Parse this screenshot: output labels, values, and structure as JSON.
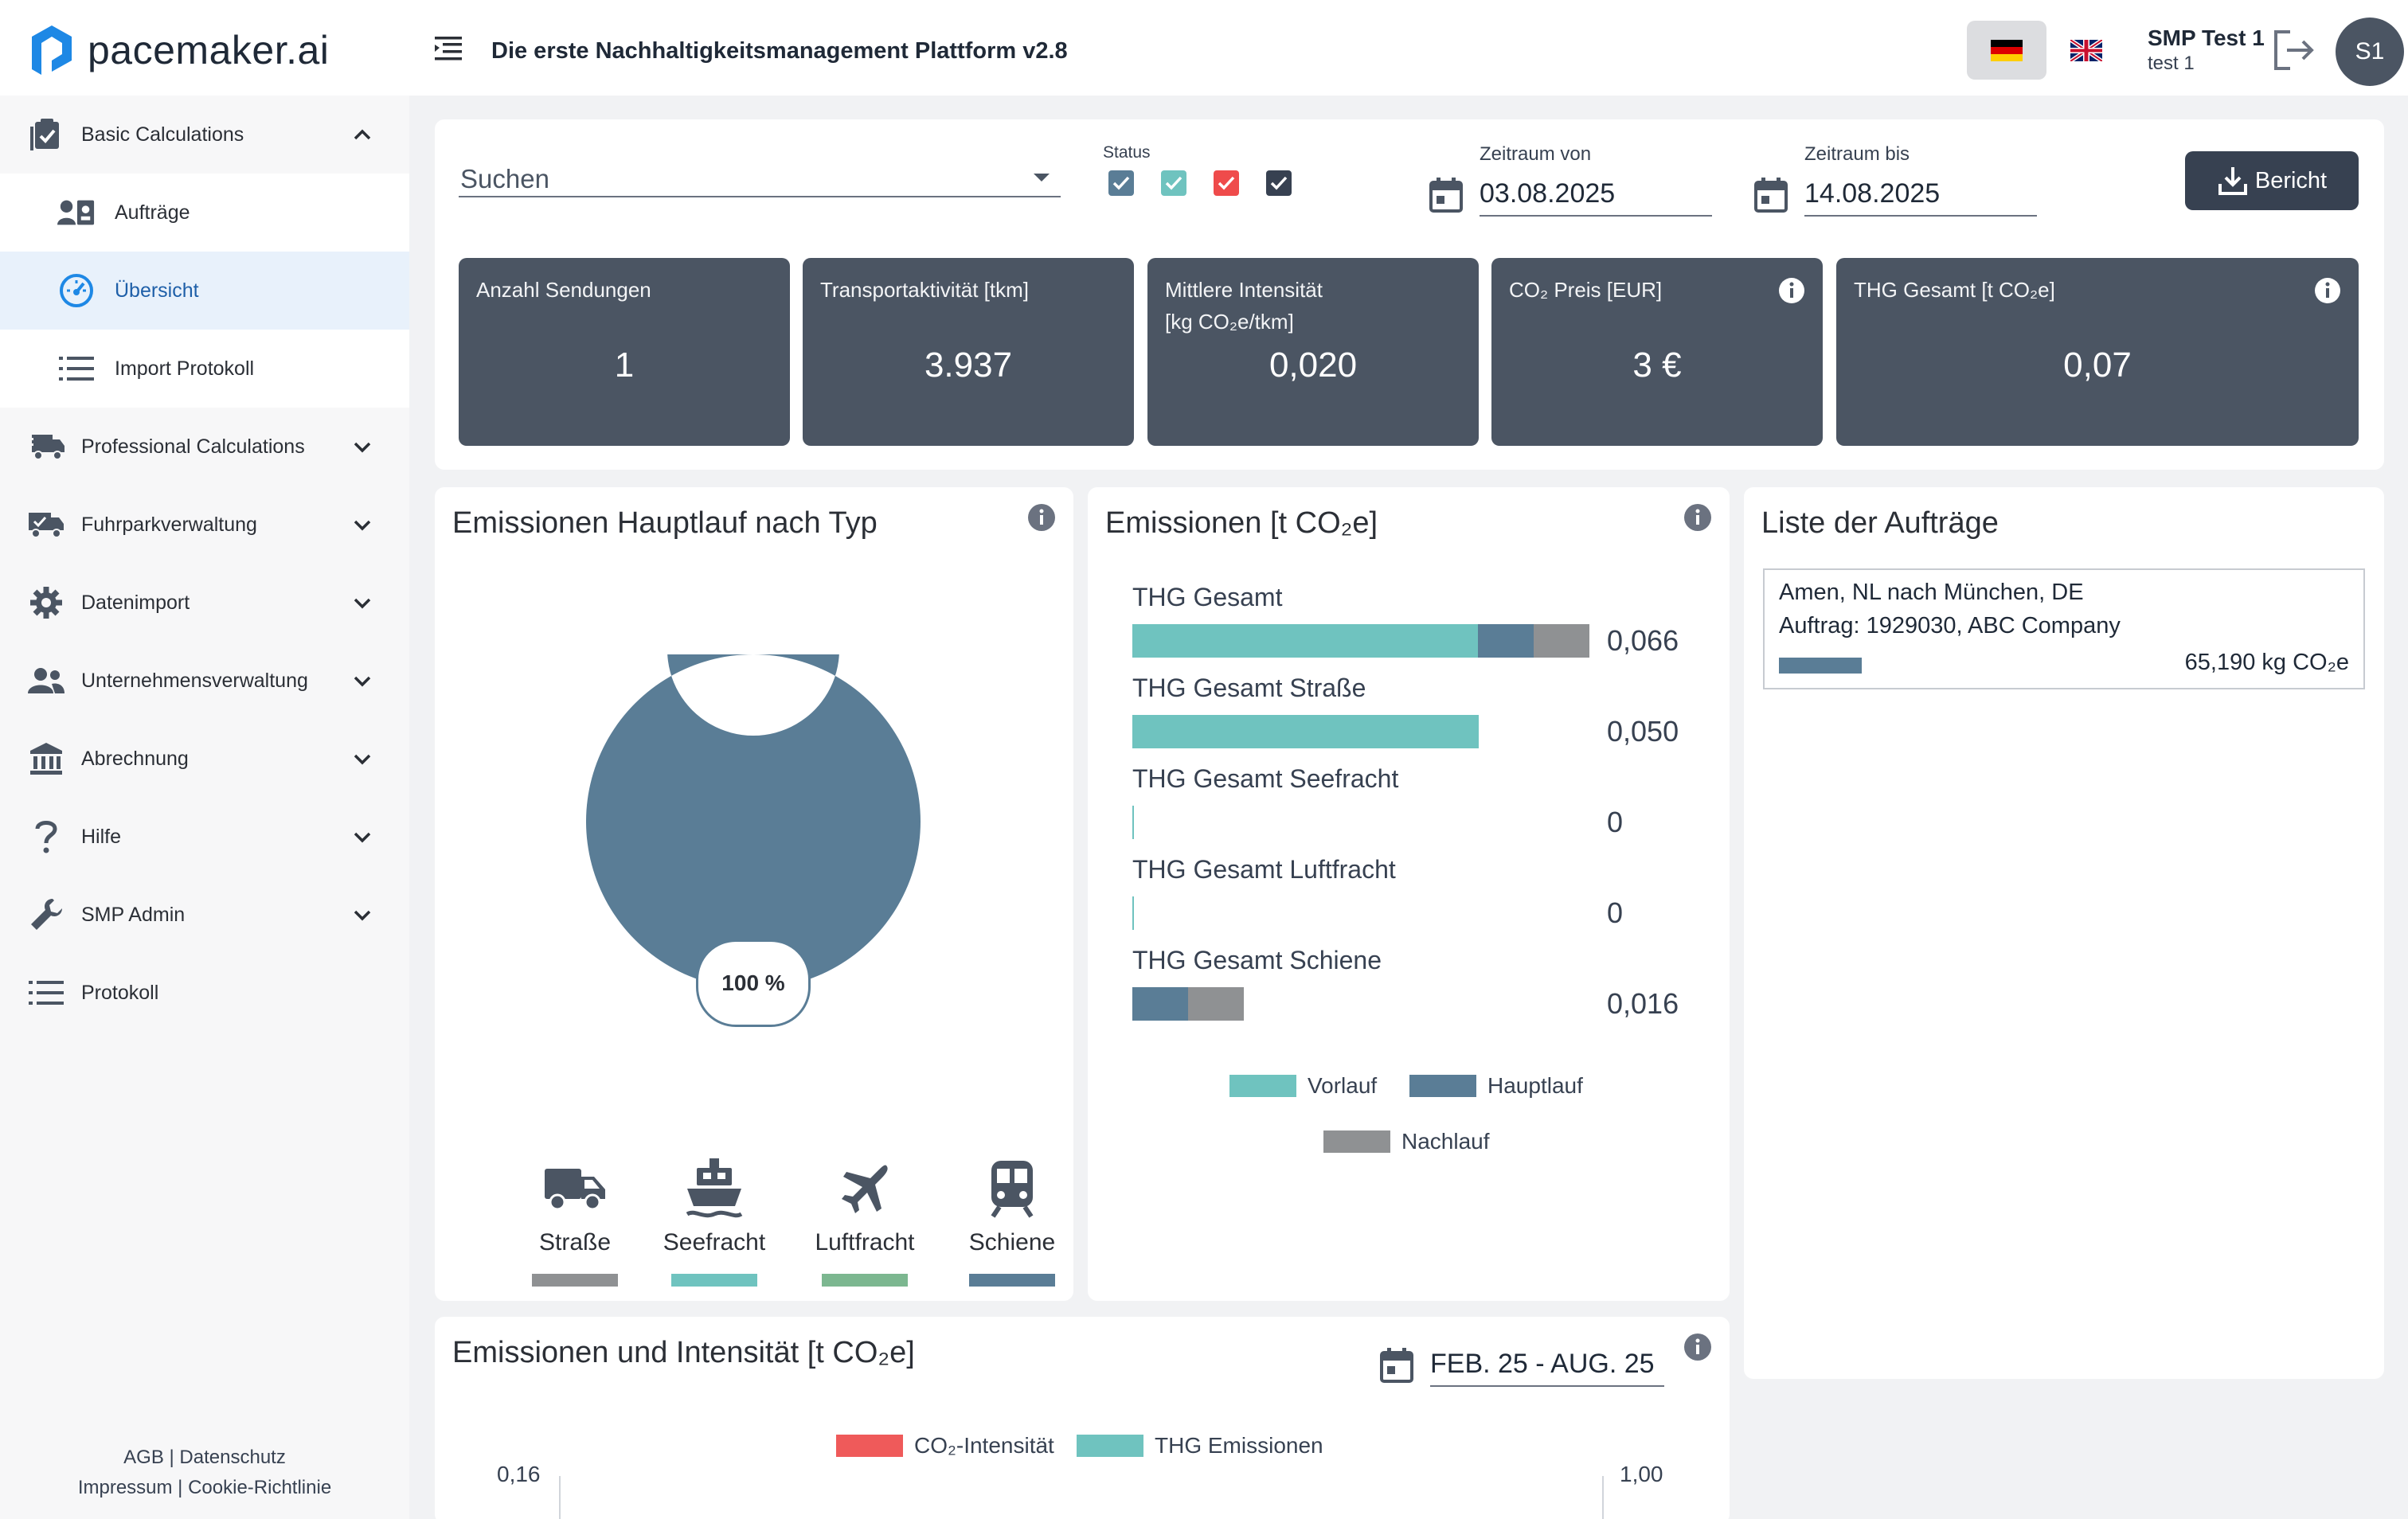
{
  "header": {
    "logo_text": "pacemaker.ai",
    "title": "Die erste Nachhaltigkeitsmanagement Plattform v2.8",
    "user_name": "SMP Test 1",
    "user_sub": "test 1",
    "avatar_initials": "S1",
    "languages": [
      "de",
      "en"
    ]
  },
  "sidebar": {
    "items": [
      {
        "label": "Basic Calculations",
        "icon": "clipboard-check-icon",
        "expanded": true
      },
      {
        "label": "Aufträge",
        "icon": "contact-card-icon"
      },
      {
        "label": "Übersicht",
        "icon": "speedometer-icon",
        "active": true
      },
      {
        "label": "Import Protokoll",
        "icon": "list-icon"
      },
      {
        "label": "Professional Calculations",
        "icon": "truck-fast-icon"
      },
      {
        "label": "Fuhrparkverwaltung",
        "icon": "truck-check-icon"
      },
      {
        "label": "Datenimport",
        "icon": "gear-icon"
      },
      {
        "label": "Unternehmensverwaltung",
        "icon": "people-icon"
      },
      {
        "label": "Abrechnung",
        "icon": "bank-icon"
      },
      {
        "label": "Hilfe",
        "icon": "question-icon"
      },
      {
        "label": "SMP Admin",
        "icon": "wrench-icon"
      },
      {
        "label": "Protokoll",
        "icon": "list-icon"
      }
    ],
    "footer": {
      "agb": "AGB",
      "datenschutz": "Datenschutz",
      "impressum": "Impressum",
      "cookie": "Cookie-Richtlinie"
    }
  },
  "filters": {
    "search_placeholder": "Suchen",
    "status_label": "Status",
    "status_colors": [
      "#5a7d96",
      "#6fc3bf",
      "#ef4b4b",
      "#374151"
    ],
    "date_from_label": "Zeitraum von",
    "date_from": "03.08.2025",
    "date_to_label": "Zeitraum bis",
    "date_to": "14.08.2025",
    "report_button": "Bericht"
  },
  "kpis": [
    {
      "label": "Anzahl Sendungen",
      "value": "1"
    },
    {
      "label": "Transportaktivität [tkm]",
      "value": "3.937"
    },
    {
      "label_line1": "Mittlere Intensität",
      "label_line2": "[kg CO₂e/tkm]",
      "value": "0,020"
    },
    {
      "label": "CO₂ Preis [EUR]",
      "value": "3 €",
      "info": true
    },
    {
      "label": "THG Gesamt [t CO₂e]",
      "value": "0,07",
      "info": true
    }
  ],
  "donut": {
    "title": "Emissionen Hauptlauf nach Typ",
    "percent_label": "100 %",
    "slices": [
      {
        "mode": "Schiene",
        "share": 1.0
      }
    ],
    "modes": [
      {
        "label": "Straße",
        "icon": "truck-icon",
        "color": "#8f9193"
      },
      {
        "label": "Seefracht",
        "icon": "ship-icon",
        "color": "#6fc3bf"
      },
      {
        "label": "Luftfracht",
        "icon": "airplane-icon",
        "color": "#7cb790"
      },
      {
        "label": "Schiene",
        "icon": "train-icon",
        "color": "#5a7d96"
      }
    ]
  },
  "emissions": {
    "title": "Emissionen [t CO₂e]",
    "max": 0.066,
    "rows": [
      {
        "label": "THG Gesamt",
        "value": "0,066",
        "vorlauf": 0.05,
        "hauptlauf": 0.008,
        "nachlauf": 0.008
      },
      {
        "label": "THG Gesamt Straße",
        "value": "0,050",
        "vorlauf": 0.05,
        "hauptlauf": 0,
        "nachlauf": 0
      },
      {
        "label": "THG Gesamt Seefracht",
        "value": "0",
        "vorlauf": 0,
        "hauptlauf": 0,
        "nachlauf": 0
      },
      {
        "label": "THG Gesamt Luftfracht",
        "value": "0",
        "vorlauf": 0,
        "hauptlauf": 0,
        "nachlauf": 0
      },
      {
        "label": "THG Gesamt Schiene",
        "value": "0,016",
        "vorlauf": 0,
        "hauptlauf": 0.008,
        "nachlauf": 0.008
      }
    ],
    "legend": [
      {
        "label": "Vorlauf",
        "color": "#6fc3bf"
      },
      {
        "label": "Hauptlauf",
        "color": "#5a7d96"
      },
      {
        "label": "Nachlauf",
        "color": "#8f9193"
      }
    ]
  },
  "orders": {
    "title": "Liste der Aufträge",
    "items": [
      {
        "route": "Amen, NL nach München, DE",
        "id": "Auftrag: 1929030, ABC Company",
        "emissions": "65,190 kg CO₂e"
      }
    ]
  },
  "timeline": {
    "title": "Emissionen und Intensität [t CO₂e]",
    "date_range": "FEB. 25 - AUG. 25",
    "legend": [
      {
        "label": "CO₂-Intensität",
        "color": "#ef5a5a"
      },
      {
        "label": "THG Emissionen",
        "color": "#6fc3bf"
      }
    ],
    "y_left_top": "0,16",
    "y_right_top": "1,00"
  }
}
